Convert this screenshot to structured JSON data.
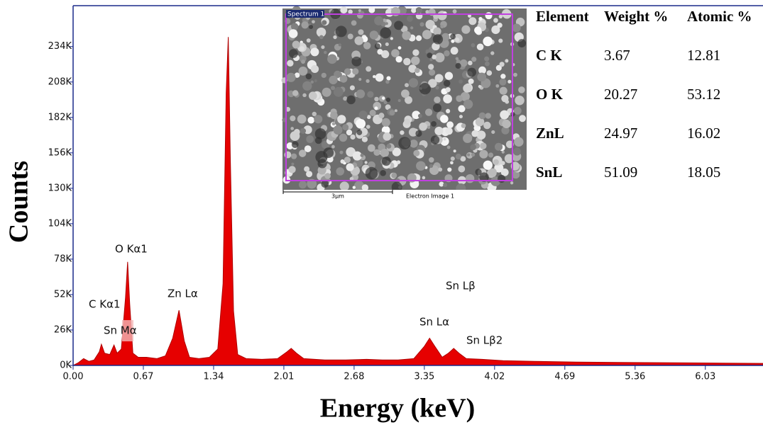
{
  "chart_data": {
    "type": "area",
    "x_label": "Energy (keV)",
    "y_label": "Counts",
    "color": "#e60000",
    "x": [
      0.0,
      0.05,
      0.1,
      0.15,
      0.2,
      0.25,
      0.27,
      0.3,
      0.35,
      0.39,
      0.42,
      0.46,
      0.5,
      0.52,
      0.54,
      0.57,
      0.62,
      0.7,
      0.8,
      0.88,
      0.95,
      1.01,
      1.06,
      1.11,
      1.2,
      1.3,
      1.38,
      1.43,
      1.46,
      1.48,
      1.5,
      1.53,
      1.57,
      1.65,
      1.8,
      1.95,
      2.04,
      2.08,
      2.13,
      2.2,
      2.4,
      2.6,
      2.8,
      2.95,
      3.1,
      3.25,
      3.35,
      3.4,
      3.45,
      3.52,
      3.58,
      3.63,
      3.68,
      3.75,
      3.9,
      4.1,
      4.4,
      4.8,
      5.2,
      5.6,
      6.0,
      6.58
    ],
    "values": [
      0,
      2000,
      5000,
      3000,
      4000,
      10000,
      15500,
      9000,
      8000,
      15000,
      9000,
      12000,
      50000,
      76000,
      45000,
      9000,
      6000,
      6000,
      5000,
      7000,
      20000,
      40500,
      18000,
      6000,
      5000,
      6000,
      12000,
      60000,
      200000,
      241000,
      150000,
      40000,
      8000,
      5000,
      4500,
      5000,
      10000,
      12500,
      9000,
      5000,
      4000,
      4000,
      4500,
      4000,
      4000,
      5000,
      14000,
      20000,
      14000,
      6000,
      9000,
      12500,
      9000,
      5000,
      4500,
      3500,
      3000,
      2500,
      2200,
      2000,
      1800,
      1500
    ],
    "xlim": [
      0,
      6.58
    ],
    "xticks": [
      {
        "value": 0,
        "label": "0.00"
      },
      0.67,
      1.34,
      2.01,
      2.68,
      3.35,
      4.02,
      4.69,
      5.36,
      6.03
    ],
    "ylim": [
      0,
      264000
    ],
    "yticks": [
      {
        "value": 0,
        "label": "0K"
      },
      {
        "value": 26000,
        "label": "26K"
      },
      {
        "value": 52000,
        "label": "52K"
      },
      {
        "value": 78000,
        "label": "78K"
      },
      {
        "value": 104000,
        "label": "104K"
      },
      {
        "value": 130000,
        "label": "130K"
      },
      {
        "value": 156000,
        "label": "156K"
      },
      {
        "value": 182000,
        "label": "182K"
      },
      {
        "value": 208000,
        "label": "208K"
      },
      {
        "value": 234000,
        "label": "234K"
      }
    ],
    "annotations": [
      "C Kα1",
      "O Kα1",
      "Sn Mα",
      "Zn Lα",
      "Sn Lα",
      "Sn Lβ",
      "Sn Lβ2"
    ]
  },
  "inset": {
    "label": "Spectrum 1",
    "scale_bar": "3μm",
    "caption": "Electron Image 1"
  },
  "table": {
    "header": [
      "Element",
      "Weight %",
      "Atomic %"
    ],
    "rows": [
      [
        "C K",
        3.67,
        12.81
      ],
      [
        "O K",
        20.27,
        53.12
      ],
      [
        "ZnL",
        24.97,
        16.02
      ],
      [
        "SnL",
        51.09,
        18.05
      ]
    ]
  }
}
